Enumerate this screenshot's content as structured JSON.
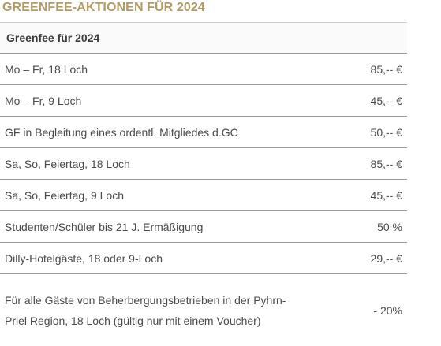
{
  "section_heading": "GREENFEE-AKTIONEN FÜR 2024",
  "table": {
    "header": "Greenfee für 2024",
    "rows": [
      {
        "label": "Mo – Fr, 18 Loch",
        "price": "85,-- €"
      },
      {
        "label": "Mo – Fr, 9 Loch",
        "price": "45,-- €"
      },
      {
        "label": "GF in Begleitung eines ordentl. Mitgliedes d.GC",
        "price": "50,-- €"
      },
      {
        "label": "Sa, So, Feiertag, 18 Loch",
        "price": "85,-- €"
      },
      {
        "label": "Sa, So, Feiertag, 9 Loch",
        "price": "45,-- €"
      },
      {
        "label": "Studenten/Schüler bis 21 J. Ermäßigung",
        "price": "50 %"
      },
      {
        "label": "Dilly-Hotelgäste, 18 oder 9-Loch",
        "price": "29,-- €"
      },
      {
        "label": "Für alle Gäste von Beherbergungsbetrieben in der Pyhrn-Priel Region, 18 Loch (gültig nur mit einem Voucher)",
        "price": "- 20%"
      }
    ]
  },
  "colors": {
    "heading": "#b29a66",
    "text": "#4a4a4a",
    "divider": "#9a9a9a"
  }
}
